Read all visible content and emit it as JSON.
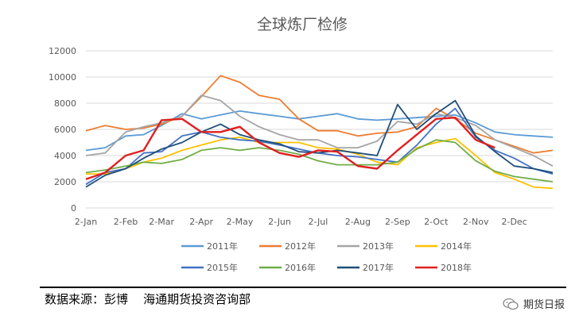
{
  "chart_data": {
    "type": "line",
    "title": "全球炼厂检修",
    "xlabel": "",
    "ylabel": "",
    "ylim": [
      0,
      12000
    ],
    "yticks": [
      0,
      2000,
      4000,
      6000,
      8000,
      10000,
      12000
    ],
    "xlim": [
      0,
      364
    ],
    "xticks": [
      {
        "label": "2-Jan",
        "day": 0
      },
      {
        "label": "2-Feb",
        "day": 31
      },
      {
        "label": "2-Mar",
        "day": 59
      },
      {
        "label": "2-Apr",
        "day": 90
      },
      {
        "label": "2-May",
        "day": 120
      },
      {
        "label": "2-Jun",
        "day": 151
      },
      {
        "label": "2-Jul",
        "day": 181
      },
      {
        "label": "2-Aug",
        "day": 212
      },
      {
        "label": "2-Sep",
        "day": 243
      },
      {
        "label": "2-Oct",
        "day": 273
      },
      {
        "label": "2-Nov",
        "day": 304
      },
      {
        "label": "2-Dec",
        "day": 334
      }
    ],
    "grid": true,
    "legend": "bottom",
    "series": [
      {
        "name": "2011年",
        "color": "#5b9bd5",
        "x": [
          0,
          15,
          31,
          45,
          59,
          75,
          90,
          105,
          120,
          135,
          151,
          166,
          181,
          196,
          212,
          227,
          243,
          258,
          273,
          288,
          304,
          319,
          334,
          349,
          364
        ],
        "values": [
          4400,
          4600,
          5500,
          5600,
          6300,
          7200,
          6800,
          7100,
          7400,
          7200,
          7000,
          6800,
          7000,
          7200,
          6800,
          6700,
          6800,
          6900,
          7000,
          7100,
          6500,
          5800,
          5600,
          5500,
          5400
        ]
      },
      {
        "name": "2012年",
        "color": "#ed7d31",
        "x": [
          0,
          15,
          31,
          45,
          59,
          75,
          90,
          105,
          120,
          135,
          151,
          166,
          181,
          196,
          212,
          227,
          243,
          258,
          273,
          288,
          304,
          319,
          334,
          349,
          364
        ],
        "values": [
          5900,
          6300,
          6000,
          6100,
          6400,
          7000,
          8500,
          10100,
          9600,
          8600,
          8300,
          6800,
          5900,
          5900,
          5500,
          5700,
          5800,
          6200,
          7600,
          6800,
          5700,
          5200,
          4700,
          4200,
          4400
        ]
      },
      {
        "name": "2013年",
        "color": "#a5a5a5",
        "x": [
          0,
          15,
          31,
          45,
          59,
          75,
          90,
          105,
          120,
          135,
          151,
          166,
          181,
          196,
          212,
          227,
          243,
          258,
          273,
          288,
          304,
          319,
          334,
          349,
          364
        ],
        "values": [
          4000,
          4200,
          5800,
          6200,
          6500,
          7000,
          8600,
          8200,
          7000,
          6200,
          5600,
          5200,
          5200,
          4600,
          4600,
          5100,
          6600,
          6400,
          7200,
          6900,
          6300,
          5200,
          4600,
          4000,
          3200
        ]
      },
      {
        "name": "2014年",
        "color": "#ffc000",
        "x": [
          0,
          15,
          31,
          45,
          59,
          75,
          90,
          105,
          120,
          135,
          151,
          166,
          181,
          196,
          212,
          227,
          243,
          258,
          273,
          288,
          304,
          319,
          334,
          349,
          364
        ],
        "values": [
          2600,
          2600,
          3000,
          3500,
          3800,
          4400,
          4800,
          5200,
          5400,
          5000,
          5000,
          5000,
          4600,
          4500,
          4100,
          3500,
          3300,
          4600,
          5000,
          5300,
          4000,
          2700,
          2200,
          1600,
          1500
        ]
      },
      {
        "name": "2015年",
        "color": "#4472c4",
        "x": [
          0,
          15,
          31,
          45,
          59,
          75,
          90,
          105,
          120,
          135,
          151,
          166,
          181,
          196,
          212,
          227,
          243,
          258,
          273,
          288,
          304,
          319,
          334,
          349,
          364
        ],
        "values": [
          1800,
          2700,
          3000,
          4200,
          4300,
          5500,
          5800,
          5400,
          5200,
          5100,
          4800,
          4500,
          4200,
          4000,
          3900,
          3700,
          3500,
          4800,
          6400,
          7600,
          5400,
          4400,
          3800,
          3000,
          2600
        ]
      },
      {
        "name": "2016年",
        "color": "#70ad47",
        "x": [
          0,
          15,
          31,
          45,
          59,
          75,
          90,
          105,
          120,
          135,
          151,
          166,
          181,
          196,
          212,
          227,
          243,
          258,
          273,
          288,
          304,
          319,
          334,
          349,
          364
        ],
        "values": [
          2700,
          2900,
          3200,
          3500,
          3400,
          3700,
          4400,
          4600,
          4400,
          4600,
          4400,
          4100,
          3600,
          3300,
          3300,
          3300,
          3500,
          4500,
          5200,
          5000,
          3600,
          2800,
          2400,
          2200,
          2000
        ]
      },
      {
        "name": "2017年",
        "color": "#1f4e79",
        "x": [
          0,
          15,
          31,
          45,
          59,
          75,
          90,
          105,
          120,
          135,
          151,
          166,
          181,
          196,
          212,
          227,
          243,
          258,
          273,
          288,
          304,
          319,
          334,
          349,
          364
        ],
        "values": [
          1600,
          2500,
          3000,
          3800,
          4500,
          5000,
          5800,
          6400,
          5600,
          5200,
          4900,
          4300,
          4200,
          4400,
          4200,
          4000,
          7900,
          6000,
          7200,
          8200,
          5500,
          4300,
          3200,
          3000,
          2700
        ]
      },
      {
        "name": "2018年",
        "color": "#e02020",
        "x": [
          0,
          15,
          31,
          45,
          59,
          75,
          90,
          105,
          120,
          135,
          151,
          166,
          181,
          196,
          212,
          227,
          243,
          258,
          273,
          288,
          304,
          319
        ],
        "values": [
          2200,
          2700,
          4000,
          4400,
          6700,
          6800,
          5800,
          5800,
          6200,
          5000,
          4200,
          3900,
          4400,
          4300,
          3200,
          3000,
          4400,
          5600,
          6800,
          6900,
          5200,
          4600
        ]
      }
    ]
  },
  "footer": {
    "source": "数据来源：彭博    海通期货投资咨询部",
    "brand": "期货日报"
  }
}
